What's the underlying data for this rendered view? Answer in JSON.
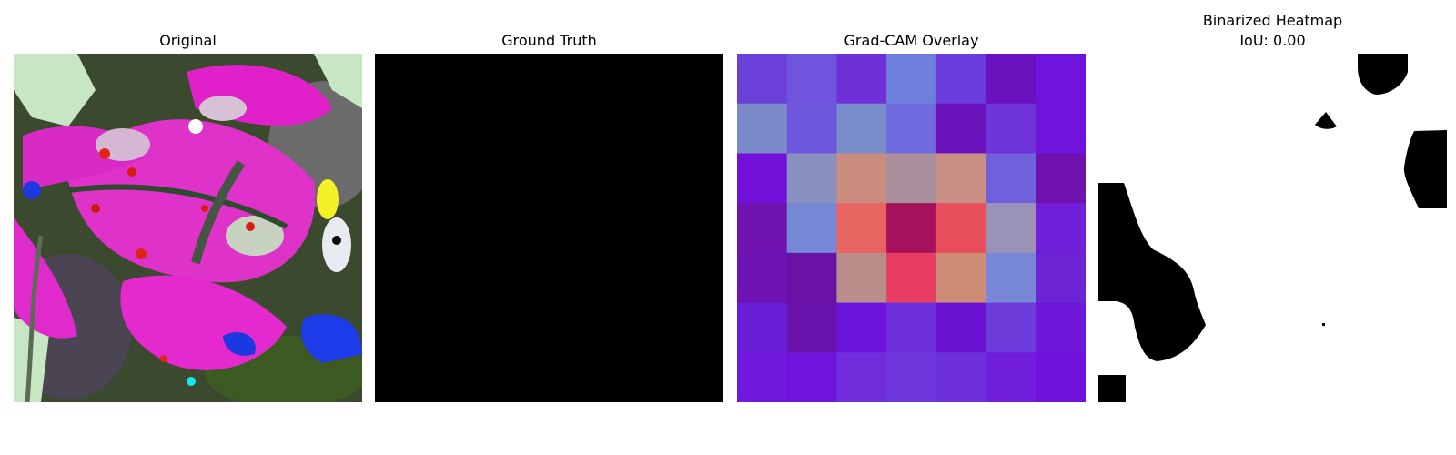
{
  "panels": {
    "original": {
      "title": "Original"
    },
    "ground_truth": {
      "title": "Ground Truth",
      "mask_color": "#000000"
    },
    "gradcam": {
      "title": "Grad-CAM Overlay",
      "grid": [
        [
          "#6b3fd9",
          "#6f55dd",
          "#7030d8",
          "#6f7fdc",
          "#6b3ddc",
          "#6912bd",
          "#6f14df"
        ],
        [
          "#7b8bc9",
          "#6f57dd",
          "#7a8ecc",
          "#6f6bde",
          "#6c12bd",
          "#6e33d9",
          "#6f14df"
        ],
        [
          "#7212d8",
          "#8a90bf",
          "#c98c7e",
          "#a98f9c",
          "#c98f85",
          "#7060db",
          "#6f12ad"
        ],
        [
          "#6f14b0",
          "#7488d6",
          "#e76460",
          "#a5125b",
          "#e84e5c",
          "#9b92b8",
          "#6f20d8"
        ],
        [
          "#6e14b4",
          "#6a11a6",
          "#b98e8a",
          "#e83c62",
          "#cf8c74",
          "#7887d6",
          "#6c24d4"
        ],
        [
          "#6a1ed8",
          "#6812ab",
          "#6b14dc",
          "#6d2fdc",
          "#6a12d2",
          "#6f3cdc",
          "#6e18dc"
        ],
        [
          "#7119dc",
          "#7016dc",
          "#6f2ddc",
          "#6e37dc",
          "#6e2fdc",
          "#701edc",
          "#7012dc"
        ]
      ]
    },
    "binarized": {
      "title_line1": "Binarized Heatmap",
      "title_line2": "IoU: 0.00"
    }
  }
}
